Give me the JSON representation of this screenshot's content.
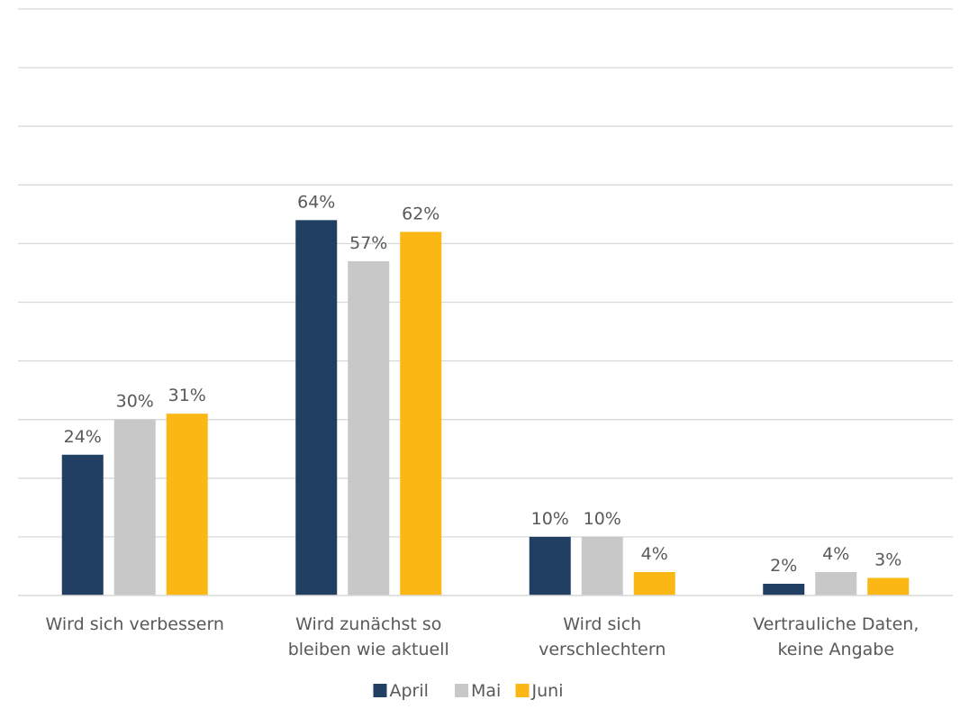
{
  "chart_data": {
    "type": "bar",
    "categories": [
      [
        "Wird sich verbessern"
      ],
      [
        "Wird zunächst so",
        "bleiben wie aktuell"
      ],
      [
        "Wird sich",
        "verschlechtern"
      ],
      [
        "Vertrauliche Daten,",
        "keine Angabe"
      ]
    ],
    "series": [
      {
        "name": "April",
        "color": "#203f63",
        "values": [
          24,
          64,
          10,
          2
        ],
        "labels": [
          "24%",
          "64%",
          "10%",
          "2%"
        ]
      },
      {
        "name": "Mai",
        "color": "#c8c8c8",
        "values": [
          30,
          57,
          10,
          4
        ],
        "labels": [
          "30%",
          "57%",
          "10%",
          "4%"
        ]
      },
      {
        "name": "Juni",
        "color": "#fbb714",
        "values": [
          31,
          62,
          4,
          3
        ],
        "labels": [
          "31%",
          "62%",
          "4%",
          "3%"
        ]
      }
    ],
    "ylim": [
      0,
      100
    ],
    "grid": true,
    "y_axis_labels_visible": false,
    "legend_position": "bottom-center"
  }
}
